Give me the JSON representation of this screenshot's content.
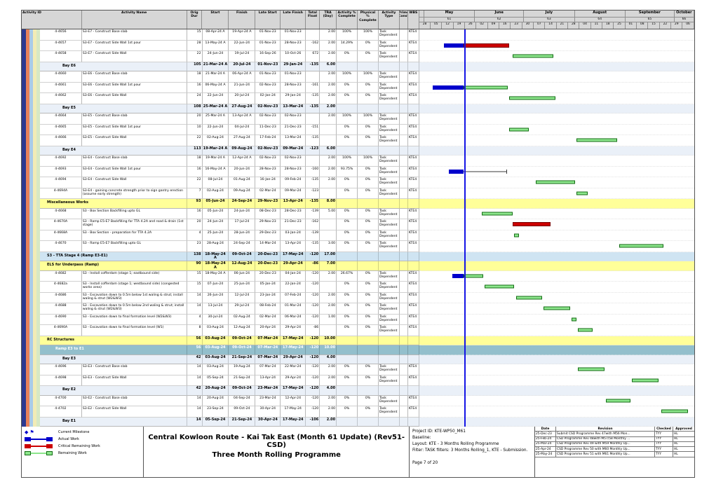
{
  "table": {
    "columns": [
      "Activity ID",
      "Activity Name",
      "Orig Dur",
      "Start",
      "Finish",
      "Late Start",
      "Late Finish",
      "Total Float",
      "TRA (Day)",
      "Activity % Complete",
      "Physical % Complete",
      "Activity Type",
      "Prims Const",
      "WBS"
    ]
  },
  "gantt": {
    "start": "28-Apr-24",
    "end": "13-Oct-24",
    "data_date": "25-May-24",
    "months": [
      {
        "label": "",
        "num": "",
        "s": "28-Apr-24",
        "e": "01-May-24"
      },
      {
        "label": "May",
        "num": "61",
        "s": "01-May-24",
        "e": "01-Jun-24"
      },
      {
        "label": "June",
        "num": "62",
        "s": "01-Jun-24",
        "e": "01-Jul-24"
      },
      {
        "label": "July",
        "num": "63",
        "s": "01-Jul-24",
        "e": "01-Aug-24"
      },
      {
        "label": "August",
        "num": "64",
        "s": "01-Aug-24",
        "e": "01-Sep-24"
      },
      {
        "label": "September",
        "num": "65",
        "s": "01-Sep-24",
        "e": "01-Oct-24"
      },
      {
        "label": "October",
        "num": "66",
        "s": "01-Oct-24",
        "e": "13-Oct-24"
      }
    ],
    "week_labels": [
      "28",
      "05",
      "12",
      "19",
      "26",
      "02",
      "09",
      "16",
      "23",
      "30",
      "07",
      "14",
      "21",
      "28",
      "04",
      "11",
      "18",
      "25",
      "01",
      "08",
      "15",
      "22",
      "29",
      "06"
    ]
  },
  "colors": {
    "actual": "#0000cc",
    "critical_remaining": "#cc0000",
    "remaining": "#8ce68c",
    "remaining_border": "#136b13",
    "data_date_line": "#1414e6",
    "band_bay": "#eaf0f8",
    "band_group": "#ffff99",
    "band_stage": "#cfe4f2",
    "band_ramp": "#93bfcc",
    "stripes": [
      "#2b3990",
      "#e8825a",
      "#aacbe8",
      "#f2ecb6",
      "#d7e8c4"
    ]
  },
  "rows": [
    {
      "k": "t",
      "id": "4-4656",
      "name": "S3-E7 - Construct Base slab",
      "od": "15",
      "st": "08-Apr-24 A",
      "fn": "19-Apr-24 A",
      "ls": "01-Nov-23",
      "lf": "01-Nov-23",
      "tf": "",
      "tra": "2.00",
      "ap": "100%",
      "pp": "100%",
      "ty": "Task Dependent",
      "wbs": "KTE4",
      "bars": []
    },
    {
      "k": "t",
      "id": "4-4657",
      "name": "S3-E7 - Construct Side Wall 1st pour",
      "od": "28",
      "st": "13-May-24 A",
      "fn": "22-Jun-24",
      "ls": "01-Nov-23",
      "lf": "28-Nov-23",
      "tf": "-162",
      "tra": "2.00",
      "ap": "14.29%",
      "pp": "0%",
      "ty": "Task Dependent",
      "wbs": "KTE4",
      "bars": [
        [
          "a",
          "13-May-24",
          "25-May-24"
        ],
        [
          "c",
          "25-May-24",
          "22-Jun-24"
        ]
      ]
    },
    {
      "k": "t",
      "id": "4-4658",
      "name": "S3-E7 - Construct Side Wall",
      "od": "22",
      "st": "24-Jun-24",
      "fn": "19-Jul-24",
      "ls": "16-Sep-26",
      "lf": "10-Oct-26",
      "tf": "672",
      "tra": "2.00",
      "ap": "0%",
      "pp": "0%",
      "ty": "Task Dependent",
      "wbs": "KTE4",
      "bars": [
        [
          "g",
          "24-Jun-24",
          "19-Jul-24"
        ]
      ]
    },
    {
      "k": "b",
      "id": "Bay E6",
      "od": "105",
      "st": "21-Mar-24 A",
      "fn": "20-Jul-24",
      "ls": "01-Nov-23",
      "lf": "29-Jan-24",
      "tf": "-135",
      "tra": "6.00",
      "bars": []
    },
    {
      "k": "t",
      "id": "4-4660",
      "name": "S3-E6 - Construct Base slab",
      "od": "18",
      "st": "21-Mar-24 A",
      "fn": "06-Apr-24 A",
      "ls": "01-Nov-23",
      "lf": "01-Nov-23",
      "tf": "",
      "tra": "2.00",
      "ap": "100%",
      "pp": "100%",
      "ty": "Task Dependent",
      "wbs": "KTE4",
      "bars": []
    },
    {
      "k": "t",
      "id": "4-4661",
      "name": "S3-E6 - Construct Side Wall 1st pour",
      "od": "16",
      "st": "06-May-24 A",
      "fn": "21-Jun-24",
      "ls": "02-Nov-23",
      "lf": "28-Nov-23",
      "tf": "-161",
      "tra": "2.00",
      "ap": "0%",
      "pp": "0%",
      "ty": "Task Dependent",
      "wbs": "KTE4",
      "bars": [
        [
          "a",
          "06-May-24",
          "25-May-24"
        ],
        [
          "g",
          "25-May-24",
          "21-Jun-24"
        ]
      ]
    },
    {
      "k": "t",
      "id": "4-4662",
      "name": "S3-E6 - Construct Side Wall",
      "od": "24",
      "st": "22-Jun-24",
      "fn": "20-Jul-24",
      "ls": "02-Jan-24",
      "lf": "29-Jan-24",
      "tf": "-135",
      "tra": "2.00",
      "ap": "0%",
      "pp": "0%",
      "ty": "Task Dependent",
      "wbs": "KTE4",
      "bars": [
        [
          "g",
          "22-Jun-24",
          "20-Jul-24"
        ]
      ]
    },
    {
      "k": "b",
      "id": "Bay E5",
      "od": "108",
      "st": "25-Mar-24 A",
      "fn": "27-Aug-24",
      "ls": "02-Nov-23",
      "lf": "13-Mar-24",
      "tf": "-135",
      "tra": "2.00",
      "bars": []
    },
    {
      "k": "t",
      "id": "4-4664",
      "name": "S3-E5 - Construct Base slab",
      "od": "20",
      "st": "25-Mar-24 A",
      "fn": "13-Apr-24 A",
      "ls": "02-Nov-23",
      "lf": "02-Nov-23",
      "tf": "",
      "tra": "2.00",
      "ap": "100%",
      "pp": "100%",
      "ty": "Task Dependent",
      "wbs": "KTE4",
      "bars": []
    },
    {
      "k": "t",
      "id": "4-4665",
      "name": "S3-E5 - Construct Side Wall 1st pour",
      "od": "10",
      "st": "22-Jun-24",
      "fn": "04-Jul-24",
      "ls": "11-Dec-23",
      "lf": "21-Dec-23",
      "tf": "-151",
      "tra": "",
      "ap": "0%",
      "pp": "0%",
      "ty": "Task Dependent",
      "wbs": "KTE4",
      "bars": [
        [
          "g",
          "22-Jun-24",
          "04-Jul-24"
        ]
      ]
    },
    {
      "k": "t",
      "id": "4-4666",
      "name": "S3-E5 - Construct Side Wall",
      "od": "22",
      "st": "02-Aug-24",
      "fn": "27-Aug-24",
      "ls": "17-Feb-24",
      "lf": "13-Mar-24",
      "tf": "-135",
      "tra": "",
      "ap": "0%",
      "pp": "0%",
      "ty": "Task Dependent",
      "wbs": "KTE4",
      "bars": [
        [
          "g",
          "02-Aug-24",
          "27-Aug-24"
        ]
      ]
    },
    {
      "k": "b",
      "id": "Bay E4",
      "od": "113",
      "st": "19-Mar-24 A",
      "fn": "09-Aug-24",
      "ls": "02-Nov-23",
      "lf": "09-Mar-24",
      "tf": "-123",
      "tra": "6.00",
      "bars": []
    },
    {
      "k": "t",
      "id": "4-4692",
      "name": "S3-E4 - Construct Base slab",
      "od": "18",
      "st": "19-Mar-24 A",
      "fn": "12-Apr-24 A",
      "ls": "02-Nov-23",
      "lf": "02-Nov-23",
      "tf": "",
      "tra": "2.00",
      "ap": "100%",
      "pp": "100%",
      "ty": "Task Dependent",
      "wbs": "KTE4",
      "bars": []
    },
    {
      "k": "t",
      "id": "4-4693",
      "name": "S3-E4 - Construct Side Wall 1st pour",
      "od": "16",
      "st": "16-May-24 A",
      "fn": "20-Jun-24",
      "ls": "28-Nov-23",
      "lf": "28-Nov-23",
      "tf": "-160",
      "tra": "2.00",
      "ap": "93.75%",
      "pp": "0%",
      "ty": "Task Dependent",
      "wbs": "KTE4",
      "bars": [
        [
          "a",
          "16-May-24",
          "25-May-24"
        ],
        [
          "l",
          "25-May-24",
          "20-Jun-24"
        ]
      ]
    },
    {
      "k": "t",
      "id": "4-4694",
      "name": "S3-E4 - Construct Side Wall",
      "od": "22",
      "st": "08-Jul-24",
      "fn": "01-Aug-24",
      "ls": "16-Jan-24",
      "lf": "09-Feb-24",
      "tf": "-135",
      "tra": "2.00",
      "ap": "0%",
      "pp": "0%",
      "ty": "Task Dependent",
      "wbs": "KTE4",
      "bars": [
        [
          "g",
          "08-Jul-24",
          "01-Aug-24"
        ]
      ]
    },
    {
      "k": "t",
      "id": "4-4694A",
      "name": "S3-E4 - gaining concrete strength prior to sign gantry erection (assume early strength)",
      "od": "7",
      "st": "02-Aug-24",
      "fn": "09-Aug-24",
      "ls": "02-Mar-24",
      "lf": "09-Mar-24",
      "tf": "-123",
      "tra": "",
      "ap": "0%",
      "pp": "0%",
      "ty": "Task Dependent",
      "wbs": "KTE4",
      "bars": [
        [
          "g",
          "02-Aug-24",
          "09-Aug-24"
        ]
      ]
    },
    {
      "k": "y",
      "id": "Miscellaneous Works",
      "od": "93",
      "st": "05-Jun-24",
      "fn": "24-Sep-24",
      "ls": "29-Nov-23",
      "lf": "13-Apr-24",
      "tf": "-135",
      "tra": "8.00",
      "bars": []
    },
    {
      "k": "t",
      "id": "4-4668",
      "name": "S3 - Box Section Backfilling upto GL",
      "od": "16",
      "st": "05-Jun-24",
      "fn": "24-Jun-24",
      "ls": "08-Dec-23",
      "lf": "28-Dec-23",
      "tf": "-139",
      "tra": "5.00",
      "ap": "0%",
      "pp": "0%",
      "ty": "Task Dependent",
      "wbs": "KTE4",
      "bars": [
        [
          "g",
          "05-Jun-24",
          "24-Jun-24"
        ]
      ]
    },
    {
      "k": "t",
      "id": "4-4670A",
      "name": "S3 - Ramp E5-E7  Backfilling for TTA 4.2A and road & drain (1st stage)",
      "od": "20",
      "st": "24-Jun-24",
      "fn": "17-Jul-24",
      "ls": "29-Nov-23",
      "lf": "21-Dec-23",
      "tf": "-162",
      "tra": "",
      "ap": "0%",
      "pp": "0%",
      "ty": "Task Dependent",
      "wbs": "KTE4",
      "bars": [
        [
          "c",
          "24-Jun-24",
          "17-Jul-24"
        ]
      ]
    },
    {
      "k": "t",
      "id": "4-4668A",
      "name": "S3 - Box Section - preparation for TTA 4.2A",
      "od": "4",
      "st": "25-Jun-24",
      "fn": "28-Jun-24",
      "ls": "29-Dec-23",
      "lf": "03-Jan-24",
      "tf": "-139",
      "tra": "",
      "ap": "0%",
      "pp": "0%",
      "ty": "Task Dependent",
      "wbs": "KTE4",
      "bars": [
        [
          "g",
          "25-Jun-24",
          "28-Jun-24"
        ]
      ]
    },
    {
      "k": "t",
      "id": "4-4670",
      "name": "S3 - Ramp E5-E7 Backfilling upto GL",
      "od": "23",
      "st": "28-Aug-24",
      "fn": "24-Sep-24",
      "ls": "14-Mar-24",
      "lf": "13-Apr-24",
      "tf": "-135",
      "tra": "3.00",
      "ap": "0%",
      "pp": "0%",
      "ty": "Task Dependent",
      "wbs": "KTE4",
      "bars": [
        [
          "g",
          "28-Aug-24",
          "24-Sep-24"
        ]
      ]
    },
    {
      "k": "s",
      "id": "S3 - TTA Stage 4 (Ramp E3-E1)",
      "od": "138",
      "st": "18-May-24 A",
      "fn": "09-Oct-24",
      "ls": "20-Dec-23",
      "lf": "17-May-24",
      "tf": "-120",
      "tra": "17.00",
      "bars": []
    },
    {
      "k": "y",
      "id": "ELS for Underpass (Ramp)",
      "od": "90",
      "st": "18-May-24 A",
      "fn": "12-Aug-24",
      "ls": "20-Dec-23",
      "lf": "29-Apr-24",
      "tf": "-86",
      "tra": "7.00",
      "bars": []
    },
    {
      "k": "t",
      "id": "4-4682",
      "name": "S3 - Install cofferdam (stage 1; eastbound side)",
      "od": "15",
      "st": "18-May-24 A",
      "fn": "06-Jun-24",
      "ls": "20-Dec-23",
      "lf": "04-Jan-24",
      "tf": "-120",
      "tra": "2.00",
      "ap": "26.67%",
      "pp": "0%",
      "ty": "Task Dependent",
      "wbs": "KTE4",
      "bars": [
        [
          "a",
          "18-May-24",
          "25-May-24"
        ],
        [
          "g",
          "25-May-24",
          "06-Jun-24"
        ]
      ]
    },
    {
      "k": "t",
      "id": "4-4682a",
      "name": "S3 - Install cofferdam (stage 1; westbound side) (congested works area)",
      "od": "15",
      "st": "07-Jun-24",
      "fn": "25-Jun-24",
      "ls": "05-Jan-24",
      "lf": "22-Jan-24",
      "tf": "-120",
      "tra": "",
      "ap": "0%",
      "pp": "0%",
      "ty": "Task Dependent",
      "wbs": "KTE4",
      "bars": [
        [
          "g",
          "07-Jun-24",
          "25-Jun-24"
        ]
      ]
    },
    {
      "k": "t",
      "id": "4-4686",
      "name": "S3 - Excavation down to 0.5m below 1st waling & strut; install waling & strut (W2&W3)",
      "od": "14",
      "st": "26-Jun-24",
      "fn": "12-Jul-24",
      "ls": "23-Jan-24",
      "lf": "07-Feb-24",
      "tf": "-120",
      "tra": "2.00",
      "ap": "0%",
      "pp": "0%",
      "ty": "Task Dependent",
      "wbs": "KTE4",
      "bars": [
        [
          "g",
          "26-Jun-24",
          "12-Jul-24"
        ]
      ]
    },
    {
      "k": "t",
      "id": "4-4688",
      "name": "S3 - Excavation down to 0.5m below 2nd waling & strut; install waling & strut (W2&W3)",
      "od": "14",
      "st": "13-Jul-24",
      "fn": "29-Jul-24",
      "ls": "08-Feb-24",
      "lf": "01-Mar-24",
      "tf": "-120",
      "tra": "2.00",
      "ap": "0%",
      "pp": "0%",
      "ty": "Task Dependent",
      "wbs": "KTE4",
      "bars": [
        [
          "g",
          "13-Jul-24",
          "29-Jul-24"
        ]
      ]
    },
    {
      "k": "t",
      "id": "4-4690",
      "name": "S3 - Excavation down to final formation level (W2&W3)",
      "od": "4",
      "st": "30-Jul-24",
      "fn": "02-Aug-24",
      "ls": "02-Mar-24",
      "lf": "06-Mar-24",
      "tf": "-120",
      "tra": "1.00",
      "ap": "0%",
      "pp": "0%",
      "ty": "Task Dependent",
      "wbs": "KTE4",
      "bars": [
        [
          "g",
          "30-Jul-24",
          "02-Aug-24"
        ]
      ]
    },
    {
      "k": "t",
      "id": "4-4690A",
      "name": "S3 - Excavation down to final formation level (W1)",
      "od": "8",
      "st": "03-Aug-24",
      "fn": "12-Aug-24",
      "ls": "20-Apr-24",
      "lf": "29-Apr-24",
      "tf": "-86",
      "tra": "",
      "ap": "0%",
      "pp": "0%",
      "ty": "Task Dependent",
      "wbs": "KTE4",
      "bars": [
        [
          "g",
          "03-Aug-24",
          "12-Aug-24"
        ]
      ]
    },
    {
      "k": "y",
      "id": "RC Structures",
      "od": "56",
      "st": "03-Aug-24",
      "fn": "09-Oct-24",
      "ls": "07-Mar-24",
      "lf": "17-May-24",
      "tf": "-120",
      "tra": "10.00",
      "bars": []
    },
    {
      "k": "r",
      "id": "Ramp E3 to E1",
      "od": "56",
      "st": "03-Aug-24",
      "fn": "09-Oct-24",
      "ls": "07-Mar-24",
      "lf": "17-May-24",
      "tf": "-120",
      "tra": "10.00",
      "bars": []
    },
    {
      "k": "b",
      "id": "Bay E3",
      "od": "42",
      "st": "03-Aug-24",
      "fn": "21-Sep-24",
      "ls": "07-Mar-24",
      "lf": "29-Apr-24",
      "tf": "-120",
      "tra": "4.00",
      "bars": []
    },
    {
      "k": "t",
      "id": "4-4696",
      "name": "S3-E3 - Construct Base slab",
      "od": "14",
      "st": "03-Aug-24",
      "fn": "19-Aug-24",
      "ls": "07-Mar-24",
      "lf": "22-Mar-24",
      "tf": "-120",
      "tra": "2.00",
      "ap": "0%",
      "pp": "0%",
      "ty": "Task Dependent",
      "wbs": "KTE4",
      "bars": [
        [
          "g",
          "03-Aug-24",
          "19-Aug-24"
        ]
      ]
    },
    {
      "k": "t",
      "id": "4-4698",
      "name": "S3-E3 - Construct Side Wall",
      "od": "14",
      "st": "05-Sep-24",
      "fn": "21-Sep-24",
      "ls": "13-Apr-24",
      "lf": "29-Apr-24",
      "tf": "-120",
      "tra": "2.00",
      "ap": "0%",
      "pp": "0%",
      "ty": "Task Dependent",
      "wbs": "KTE4",
      "bars": [
        [
          "g",
          "05-Sep-24",
          "21-Sep-24"
        ]
      ]
    },
    {
      "k": "b",
      "id": "Bay E2",
      "od": "42",
      "st": "20-Aug-24",
      "fn": "09-Oct-24",
      "ls": "23-Mar-24",
      "lf": "17-May-24",
      "tf": "-120",
      "tra": "4.00",
      "bars": []
    },
    {
      "k": "t",
      "id": "4-4700",
      "name": "S3-E2 - Construct Base slab",
      "od": "14",
      "st": "20-Aug-24",
      "fn": "04-Sep-24",
      "ls": "23-Mar-24",
      "lf": "12-Apr-24",
      "tf": "-120",
      "tra": "2.00",
      "ap": "0%",
      "pp": "0%",
      "ty": "Task Dependent",
      "wbs": "KTE4",
      "bars": [
        [
          "g",
          "20-Aug-24",
          "04-Sep-24"
        ]
      ]
    },
    {
      "k": "t",
      "id": "4-4702",
      "name": "S3-E2 - Construct Side Wall",
      "od": "14",
      "st": "23-Sep-24",
      "fn": "09-Oct-24",
      "ls": "30-Apr-24",
      "lf": "17-May-24",
      "tf": "-120",
      "tra": "2.00",
      "ap": "0%",
      "pp": "0%",
      "ty": "Task Dependent",
      "wbs": "KTE4",
      "bars": [
        [
          "g",
          "23-Sep-24",
          "09-Oct-24"
        ]
      ]
    },
    {
      "k": "b",
      "id": "Bay E1",
      "od": "14",
      "st": "05-Sep-24",
      "fn": "21-Sep-24",
      "ls": "30-Apr-24",
      "lf": "17-May-24",
      "tf": "-106",
      "tra": "2.00",
      "bars": []
    }
  ],
  "legend": {
    "items": [
      {
        "type": "milestone",
        "label": "Current Milestone"
      },
      {
        "type": "actual",
        "label": "Actual Work"
      },
      {
        "type": "critical",
        "label": "Critical Remaining Work"
      },
      {
        "type": "remaining",
        "label": "Remaining Work"
      }
    ]
  },
  "title": {
    "line1": "Central Kowloon Route - Kai Tak East (Month 61 Update) (Rev51- CSD)",
    "line2": "Three Month Rolling Programme"
  },
  "footer_info": {
    "project_id": "Project ID: KTE-WP50_M61",
    "baseline": "Baseline:",
    "layout": "Layout: KTE - 3 Months Rolling Programme",
    "filter": "Filter: TASK filters: 3 Months Rolling_1, KTE - Submission.",
    "page": "Page 7 of 20"
  },
  "revisions": {
    "columns": [
      "Date",
      "Revision",
      "Checked",
      "Approved"
    ],
    "rows": [
      [
        "25-Dec-23",
        "Submit CSD Programme Rev 47with M56 Mon...",
        "TYY",
        "HL"
      ],
      [
        "25-Feb-24",
        "CSD Programme Rev 48with M57/58 Monthly ...",
        "TYY",
        "HL"
      ],
      [
        "25-Mar-24",
        "CSD Programme Rev 49 with M59 Monthly Up...",
        "TYY",
        "HL"
      ],
      [
        "25-Apr-24",
        "CSD Programme Rev 50 with M60 Monthly Up...",
        "TYY",
        "HL"
      ],
      [
        "25-May-24",
        "CSD Programme Rev 51 with M61 Monthly Up...",
        "TYY",
        "HL"
      ]
    ]
  }
}
